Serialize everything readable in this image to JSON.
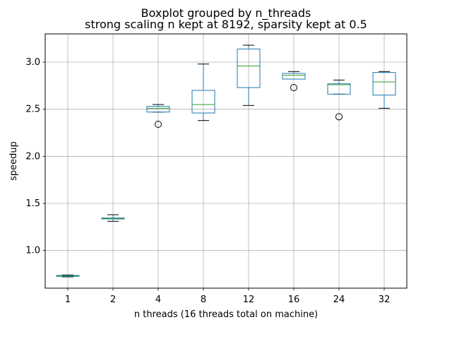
{
  "chart_data": {
    "type": "boxplot",
    "title": "Boxplot grouped by n_threads",
    "subtitle": "strong scaling n kept at 8192, sparsity kept at 0.5",
    "xlabel": "n threads (16 threads total on machine)",
    "ylabel": "speedup",
    "ylim": [
      0.6,
      3.3
    ],
    "yticks": [
      1.0,
      1.5,
      2.0,
      2.5,
      3.0
    ],
    "ytick_labels": [
      "1.0",
      "1.5",
      "2.0",
      "2.5",
      "3.0"
    ],
    "grid": true,
    "categories": [
      "1",
      "2",
      "4",
      "8",
      "12",
      "16",
      "24",
      "32"
    ],
    "boxes": [
      {
        "whisker_low": 0.72,
        "q1": 0.725,
        "median": 0.73,
        "q3": 0.735,
        "whisker_high": 0.74,
        "outliers": []
      },
      {
        "whisker_low": 1.31,
        "q1": 1.335,
        "median": 1.34,
        "q3": 1.345,
        "whisker_high": 1.38,
        "outliers": []
      },
      {
        "whisker_low": 2.47,
        "q1": 2.47,
        "median": 2.51,
        "q3": 2.53,
        "whisker_high": 2.55,
        "outliers": [
          2.34
        ]
      },
      {
        "whisker_low": 2.38,
        "q1": 2.46,
        "median": 2.55,
        "q3": 2.7,
        "whisker_high": 2.98,
        "outliers": []
      },
      {
        "whisker_low": 2.54,
        "q1": 2.73,
        "median": 2.96,
        "q3": 3.14,
        "whisker_high": 3.18,
        "outliers": []
      },
      {
        "whisker_low": 2.82,
        "q1": 2.82,
        "median": 2.86,
        "q3": 2.88,
        "whisker_high": 2.9,
        "outliers": [
          2.73
        ]
      },
      {
        "whisker_low": 2.66,
        "q1": 2.66,
        "median": 2.76,
        "q3": 2.77,
        "whisker_high": 2.81,
        "outliers": [
          2.42
        ]
      },
      {
        "whisker_low": 2.51,
        "q1": 2.65,
        "median": 2.79,
        "q3": 2.89,
        "whisker_high": 2.9,
        "outliers": []
      }
    ],
    "colors": {
      "box": "#1f77b4",
      "median": "#2ca02c",
      "whisker": "#000000",
      "grid": "#b0b0b0"
    }
  }
}
